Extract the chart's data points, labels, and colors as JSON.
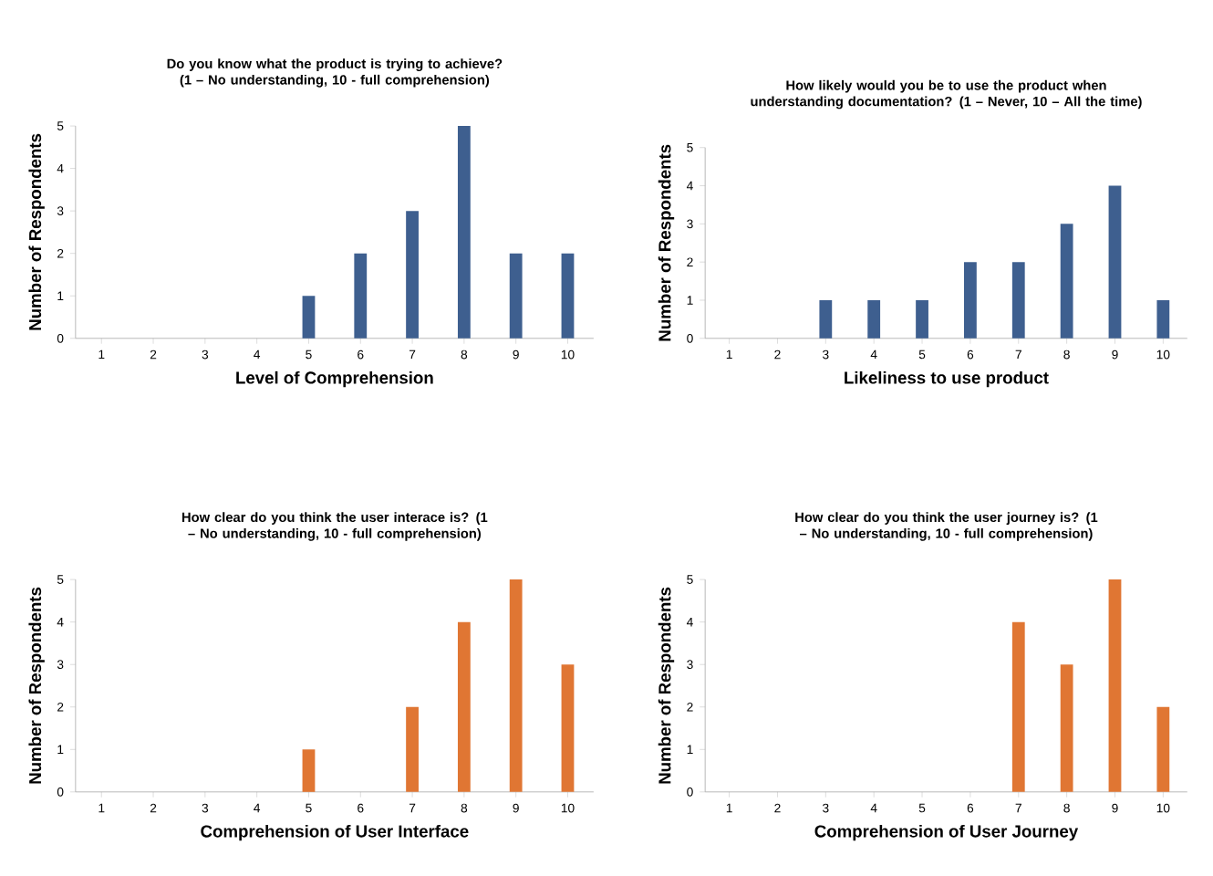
{
  "chart_data": [
    {
      "type": "bar",
      "title": "Do you know what the product is trying to achieve? (1 – No understanding, 10 - full comprehension)",
      "xlabel": "Level of Comprehension",
      "ylabel": "Number of Respondents",
      "categories": [
        "1",
        "2",
        "3",
        "4",
        "5",
        "6",
        "7",
        "8",
        "9",
        "10"
      ],
      "values": [
        0,
        0,
        0,
        0,
        1,
        2,
        3,
        5,
        2,
        2
      ],
      "color": "#3e5f8f",
      "ylim": [
        0,
        5
      ],
      "yticks": [
        0,
        1,
        2,
        3,
        4,
        5
      ]
    },
    {
      "type": "bar",
      "title": "How likely would you be to use the product when understanding documentation? (1 – Never, 10 – All the time)",
      "xlabel": "Likeliness to use product",
      "ylabel": "Number of Respondents",
      "categories": [
        "1",
        "2",
        "3",
        "4",
        "5",
        "6",
        "7",
        "8",
        "9",
        "10"
      ],
      "values": [
        0,
        0,
        1,
        1,
        1,
        2,
        2,
        3,
        4,
        1
      ],
      "color": "#3e5f8f",
      "ylim": [
        0,
        5
      ],
      "yticks": [
        0,
        1,
        2,
        3,
        4,
        5
      ]
    },
    {
      "type": "bar",
      "title": "How clear do you think the user interace is? (1 – No understanding, 10 - full comprehension)",
      "xlabel": "Comprehension of User Interface",
      "ylabel": "Number of Respondents",
      "categories": [
        "1",
        "2",
        "3",
        "4",
        "5",
        "6",
        "7",
        "8",
        "9",
        "10"
      ],
      "values": [
        0,
        0,
        0,
        0,
        1,
        0,
        2,
        4,
        5,
        3
      ],
      "color": "#e07633",
      "ylim": [
        0,
        5
      ],
      "yticks": [
        0,
        1,
        2,
        3,
        4,
        5
      ]
    },
    {
      "type": "bar",
      "title": "How clear do you think the user journey is? (1 – No understanding, 10 - full comprehension)",
      "xlabel": "Comprehension of User Journey",
      "ylabel": "Number of Respondents",
      "categories": [
        "1",
        "2",
        "3",
        "4",
        "5",
        "6",
        "7",
        "8",
        "9",
        "10"
      ],
      "values": [
        0,
        0,
        0,
        0,
        0,
        0,
        4,
        3,
        5,
        2
      ],
      "color": "#e07633",
      "ylim": [
        0,
        5
      ],
      "yticks": [
        0,
        1,
        2,
        3,
        4,
        5
      ]
    }
  ]
}
